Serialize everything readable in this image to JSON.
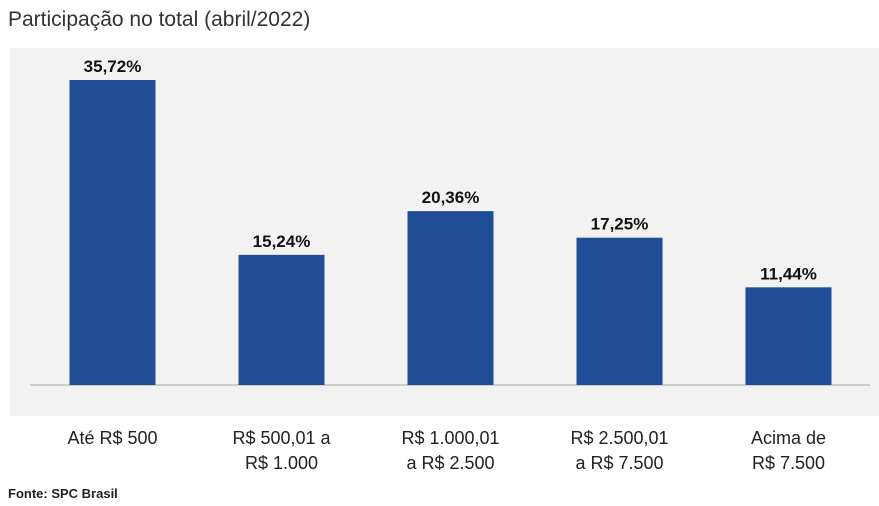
{
  "chart_data": {
    "type": "bar",
    "title": "Participação no total (abril/2022)",
    "categories": [
      "Até R$ 500",
      "R$ 500,01 a\nR$ 1.000",
      "R$ 1.000,01\na R$ 2.500",
      "R$ 2.500,01\na R$ 7.500",
      "Acima de\nR$ 7.500"
    ],
    "values": [
      35.72,
      15.24,
      20.36,
      17.25,
      11.44
    ],
    "value_labels": [
      "35,72%",
      "15,24%",
      "20,36%",
      "17,25%",
      "11,44%"
    ],
    "color": "#1f4e96",
    "grid": false,
    "source": "Fonte: SPC Brasil"
  }
}
